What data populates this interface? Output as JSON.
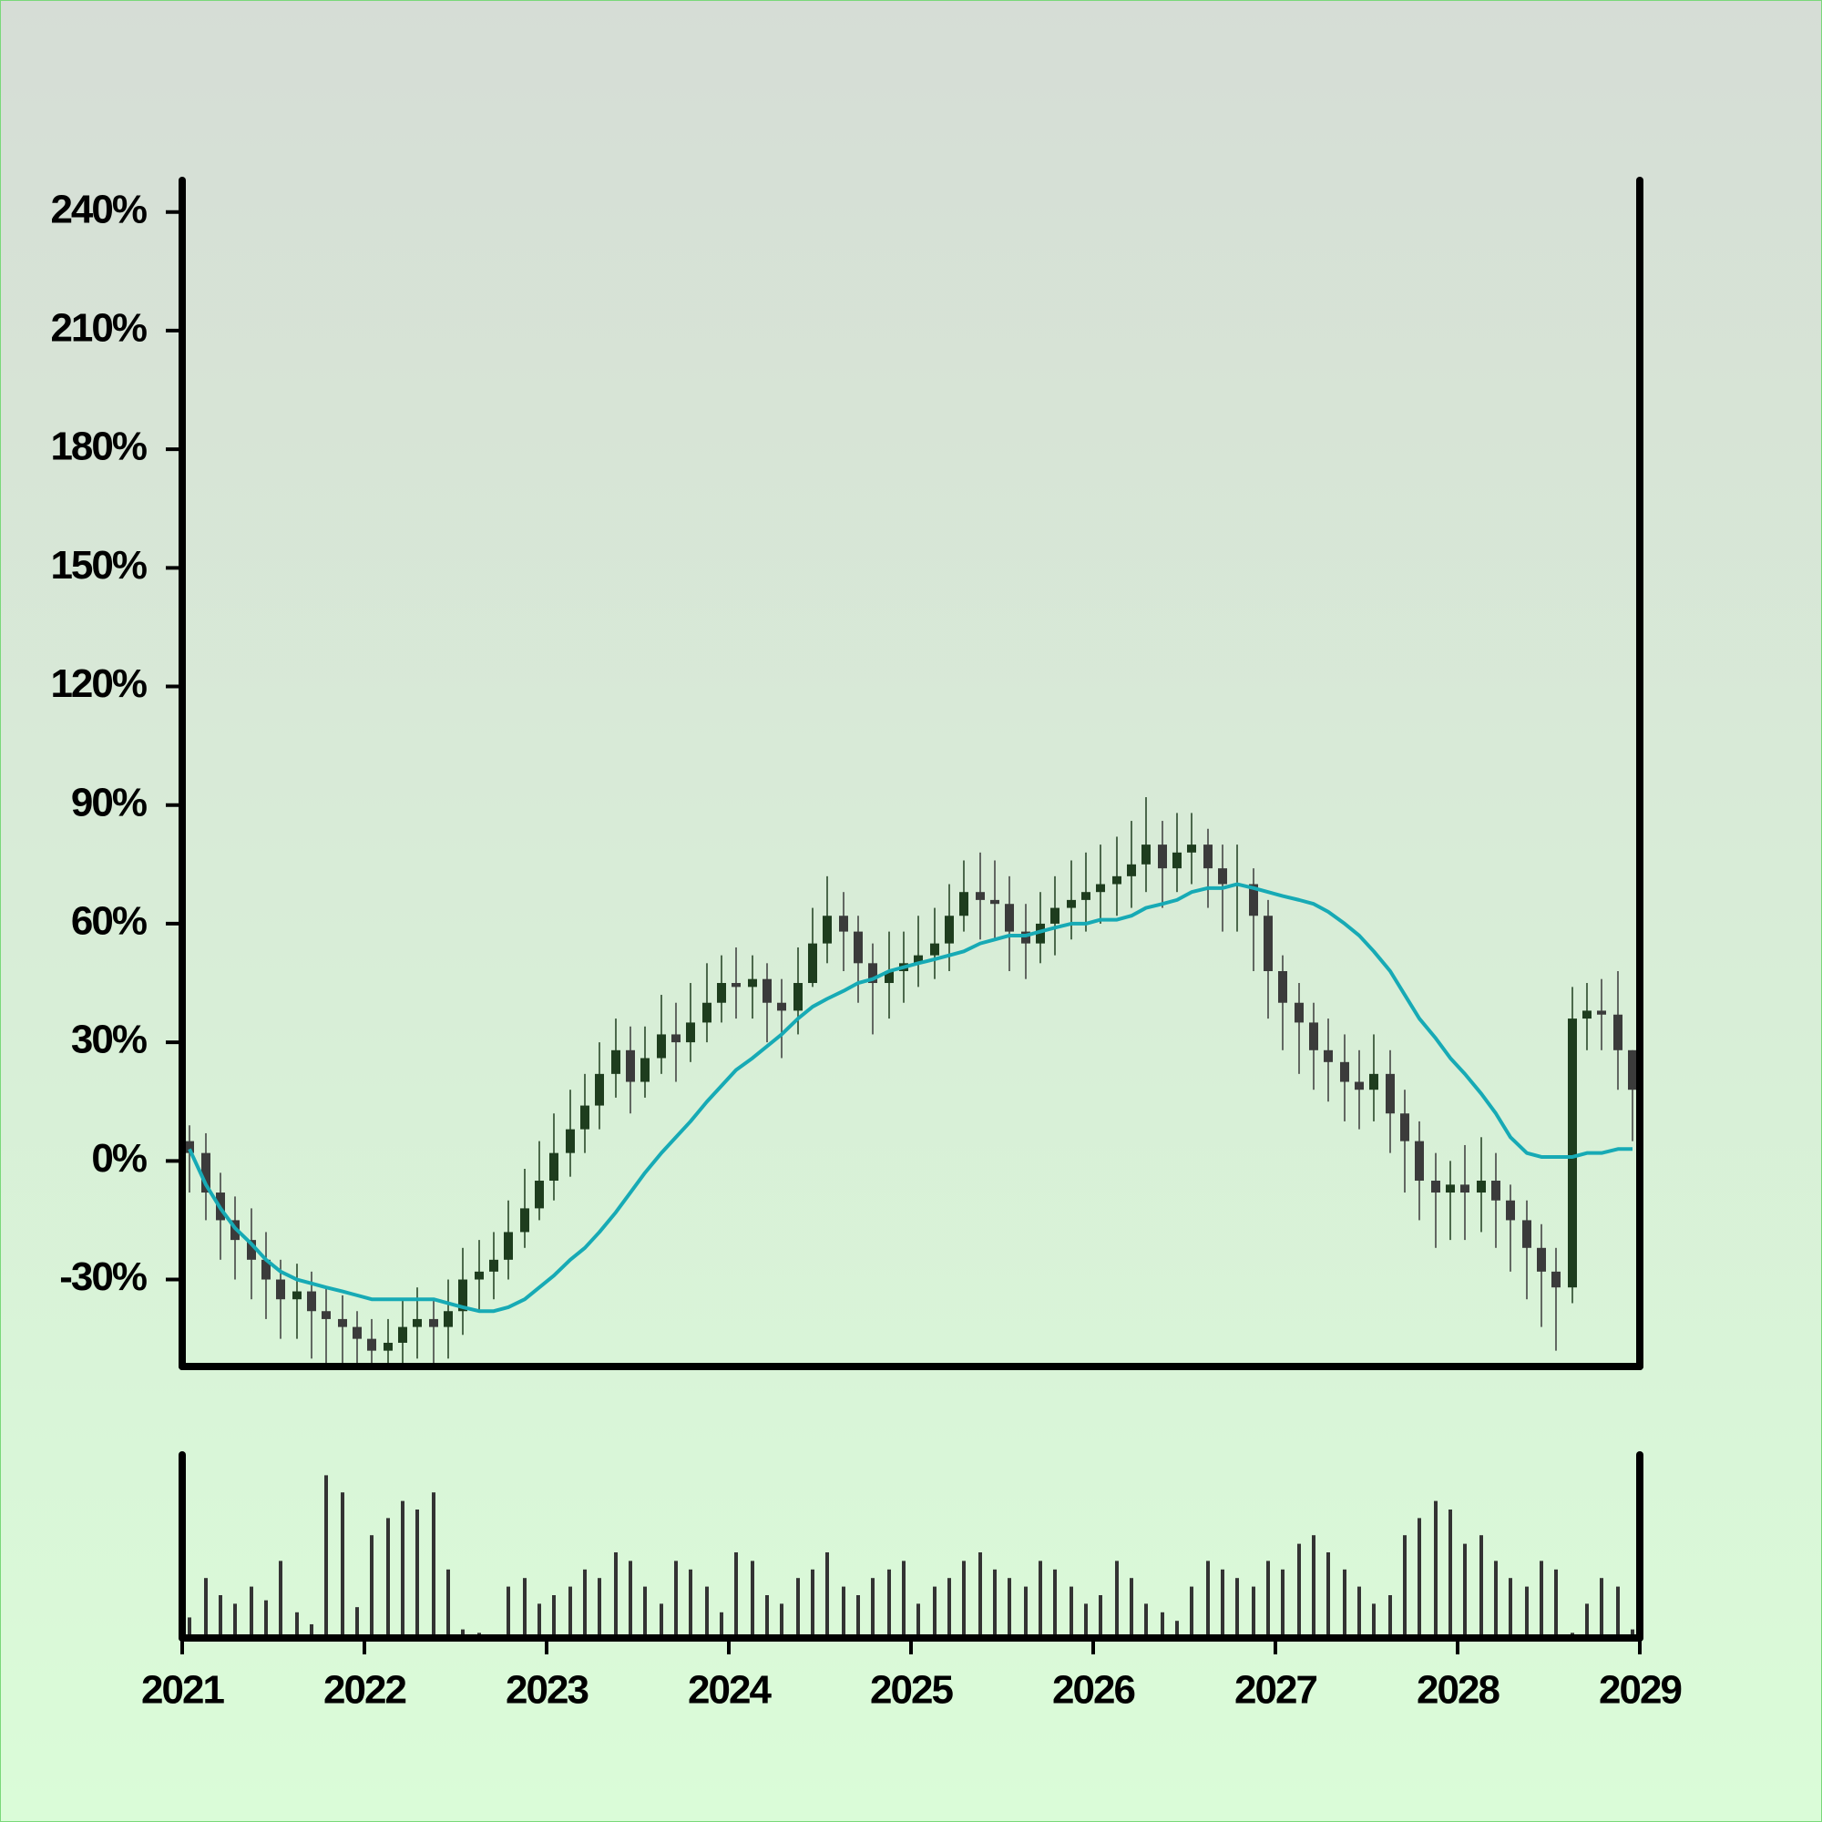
{
  "chart_data": {
    "type": "candlestick",
    "x": [
      2021.04,
      2021.13,
      2021.21,
      2021.29,
      2021.38,
      2021.46,
      2021.54,
      2021.63,
      2021.71,
      2021.79,
      2021.88,
      2021.96,
      2022.04,
      2022.13,
      2022.21,
      2022.29,
      2022.38,
      2022.46,
      2022.54,
      2022.63,
      2022.71,
      2022.79,
      2022.88,
      2022.96,
      2023.04,
      2023.13,
      2023.21,
      2023.29,
      2023.38,
      2023.46,
      2023.54,
      2023.63,
      2023.71,
      2023.79,
      2023.88,
      2023.96,
      2024.04,
      2024.13,
      2024.21,
      2024.29,
      2024.38,
      2024.46,
      2024.54,
      2024.63,
      2024.71,
      2024.79,
      2024.88,
      2024.96,
      2025.04,
      2025.13,
      2025.21,
      2025.29,
      2025.38,
      2025.46,
      2025.54,
      2025.63,
      2025.71,
      2025.79,
      2025.88,
      2025.96,
      2026.04,
      2026.13,
      2026.21,
      2026.29,
      2026.38,
      2026.46,
      2026.54,
      2026.63,
      2026.71,
      2026.79,
      2026.88,
      2026.96,
      2027.04,
      2027.13,
      2027.21,
      2027.29,
      2027.38,
      2027.46,
      2027.54,
      2027.63,
      2027.71,
      2027.79,
      2027.88,
      2027.96,
      2028.04,
      2028.13,
      2028.21,
      2028.29,
      2028.38,
      2028.46,
      2028.54,
      2028.63,
      2028.71,
      2028.79,
      2028.88,
      2028.96
    ],
    "open": [
      5,
      2,
      -8,
      -15,
      -20,
      -25,
      -30,
      -35,
      -33,
      -38,
      -40,
      -42,
      -45,
      -48,
      -46,
      -42,
      -40,
      -42,
      -38,
      -30,
      -28,
      -25,
      -18,
      -12,
      -5,
      2,
      8,
      14,
      22,
      28,
      20,
      26,
      32,
      30,
      35,
      40,
      45,
      44,
      46,
      40,
      38,
      45,
      55,
      62,
      58,
      50,
      45,
      48,
      50,
      52,
      55,
      62,
      68,
      66,
      65,
      58,
      55,
      60,
      64,
      66,
      68,
      70,
      72,
      75,
      80,
      74,
      78,
      80,
      74,
      70,
      70,
      62,
      48,
      40,
      35,
      28,
      25,
      20,
      18,
      22,
      12,
      5,
      -5,
      -8,
      -6,
      -8,
      -5,
      -10,
      -15,
      -22,
      -28,
      -32,
      36,
      38,
      37,
      28
    ],
    "close": [
      2,
      -8,
      -15,
      -20,
      -25,
      -30,
      -35,
      -33,
      -38,
      -40,
      -42,
      -45,
      -48,
      -46,
      -42,
      -40,
      -42,
      -38,
      -30,
      -28,
      -25,
      -18,
      -12,
      -5,
      2,
      8,
      14,
      22,
      28,
      20,
      26,
      32,
      30,
      35,
      40,
      45,
      44,
      46,
      40,
      38,
      45,
      55,
      62,
      58,
      50,
      45,
      48,
      50,
      52,
      55,
      62,
      68,
      66,
      65,
      58,
      55,
      60,
      64,
      66,
      68,
      70,
      72,
      75,
      80,
      74,
      78,
      80,
      74,
      70,
      70,
      62,
      48,
      40,
      35,
      28,
      25,
      20,
      18,
      22,
      12,
      5,
      -5,
      -8,
      -6,
      -8,
      -5,
      -10,
      -15,
      -22,
      -28,
      -32,
      36,
      38,
      37,
      28,
      18
    ],
    "high": [
      9,
      7,
      -3,
      -9,
      -12,
      -18,
      -25,
      -26,
      -28,
      -32,
      -34,
      -38,
      -40,
      -40,
      -35,
      -32,
      -35,
      -30,
      -22,
      -20,
      -18,
      -10,
      -2,
      5,
      12,
      18,
      22,
      30,
      36,
      34,
      34,
      42,
      40,
      45,
      50,
      52,
      54,
      52,
      50,
      46,
      54,
      64,
      72,
      68,
      62,
      55,
      58,
      58,
      62,
      64,
      70,
      76,
      78,
      76,
      72,
      65,
      68,
      72,
      76,
      78,
      80,
      82,
      86,
      92,
      86,
      88,
      88,
      84,
      80,
      80,
      74,
      66,
      52,
      45,
      40,
      36,
      32,
      28,
      32,
      28,
      18,
      10,
      2,
      0,
      4,
      6,
      2,
      -6,
      -10,
      -16,
      -22,
      44,
      45,
      46,
      48,
      28
    ],
    "low": [
      -8,
      -15,
      -25,
      -30,
      -35,
      -40,
      -45,
      -45,
      -50,
      -52,
      -54,
      -56,
      -58,
      -56,
      -52,
      -50,
      -52,
      -50,
      -44,
      -38,
      -35,
      -30,
      -22,
      -15,
      -10,
      -4,
      2,
      8,
      16,
      12,
      16,
      22,
      20,
      25,
      30,
      35,
      36,
      36,
      30,
      26,
      32,
      44,
      50,
      48,
      40,
      32,
      36,
      40,
      44,
      46,
      48,
      58,
      56,
      56,
      48,
      46,
      50,
      52,
      56,
      58,
      60,
      62,
      64,
      68,
      64,
      68,
      70,
      64,
      58,
      58,
      48,
      36,
      28,
      22,
      18,
      15,
      10,
      8,
      10,
      2,
      -8,
      -15,
      -22,
      -20,
      -20,
      -18,
      -22,
      -28,
      -35,
      -42,
      -48,
      -36,
      28,
      28,
      18,
      5
    ],
    "up_color": "#1e3d1e",
    "down_color": "#3b3b3b",
    "ma": {
      "color": "#17aab5",
      "values": [
        3,
        -6,
        -12,
        -17,
        -21,
        -25,
        -28,
        -30,
        -31,
        -32,
        -33,
        -34,
        -35,
        -35,
        -35,
        -35,
        -35,
        -36,
        -37,
        -38,
        -38,
        -37,
        -35,
        -32,
        -29,
        -25,
        -22,
        -18,
        -13,
        -8,
        -3,
        2,
        6,
        10,
        15,
        19,
        23,
        26,
        29,
        32,
        36,
        39,
        41,
        43,
        45,
        46,
        48,
        49,
        50,
        51,
        52,
        53,
        55,
        56,
        57,
        57,
        58,
        59,
        60,
        60,
        61,
        61,
        62,
        64,
        65,
        66,
        68,
        69,
        69,
        70,
        69,
        68,
        67,
        66,
        65,
        63,
        60,
        57,
        53,
        48,
        42,
        36,
        31,
        26,
        22,
        17,
        12,
        6,
        2,
        1,
        1,
        1,
        2,
        2,
        3,
        3
      ]
    },
    "volume": [
      12,
      35,
      25,
      20,
      30,
      22,
      45,
      15,
      8,
      95,
      85,
      18,
      60,
      70,
      80,
      75,
      85,
      40,
      5,
      3,
      2,
      30,
      35,
      20,
      25,
      30,
      40,
      35,
      50,
      45,
      30,
      20,
      45,
      40,
      30,
      15,
      50,
      45,
      25,
      20,
      35,
      40,
      50,
      30,
      25,
      35,
      40,
      45,
      20,
      30,
      35,
      45,
      50,
      40,
      35,
      30,
      45,
      40,
      30,
      20,
      25,
      45,
      35,
      20,
      15,
      10,
      30,
      45,
      40,
      35,
      30,
      45,
      40,
      55,
      60,
      50,
      40,
      30,
      20,
      25,
      60,
      70,
      80,
      75,
      55,
      60,
      45,
      35,
      30,
      45,
      40,
      3,
      20,
      35,
      30,
      5
    ],
    "volume_color": "#333333",
    "volume_ylim": [
      0,
      100
    ],
    "xlim": [
      2021,
      2029
    ],
    "xticks": [
      2021,
      2022,
      2023,
      2024,
      2025,
      2026,
      2027,
      2028,
      2029
    ],
    "ylim": [
      -52,
      248
    ],
    "yticks": [
      {
        "value": -30,
        "label": "-30%"
      },
      {
        "value": 0,
        "label": "0%"
      },
      {
        "value": 30,
        "label": "30%"
      },
      {
        "value": 60,
        "label": "60%"
      },
      {
        "value": 90,
        "label": "90%"
      },
      {
        "value": 120,
        "label": "120%"
      },
      {
        "value": 150,
        "label": "150%"
      },
      {
        "value": 180,
        "label": "180%"
      },
      {
        "value": 210,
        "label": "210%"
      },
      {
        "value": 240,
        "label": "240%"
      }
    ]
  }
}
